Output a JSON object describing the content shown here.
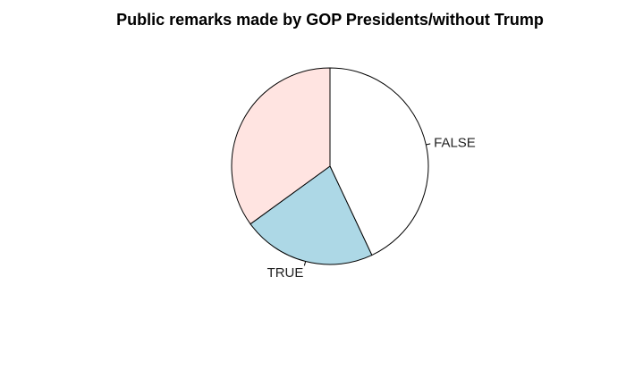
{
  "chart_data": {
    "type": "pie",
    "title": "Public remarks made by GOP Presidents/without Trump",
    "slices": [
      {
        "label": "FALSE",
        "value": 43,
        "color": "#ffffff"
      },
      {
        "label": "TRUE",
        "value": 22,
        "color": "#add8e6"
      },
      {
        "label": "",
        "value": 35,
        "color": "#ffe4e1"
      }
    ],
    "start_angle_deg": 90,
    "direction": "clockwise",
    "legend": "none",
    "outline_color": "#000000"
  }
}
